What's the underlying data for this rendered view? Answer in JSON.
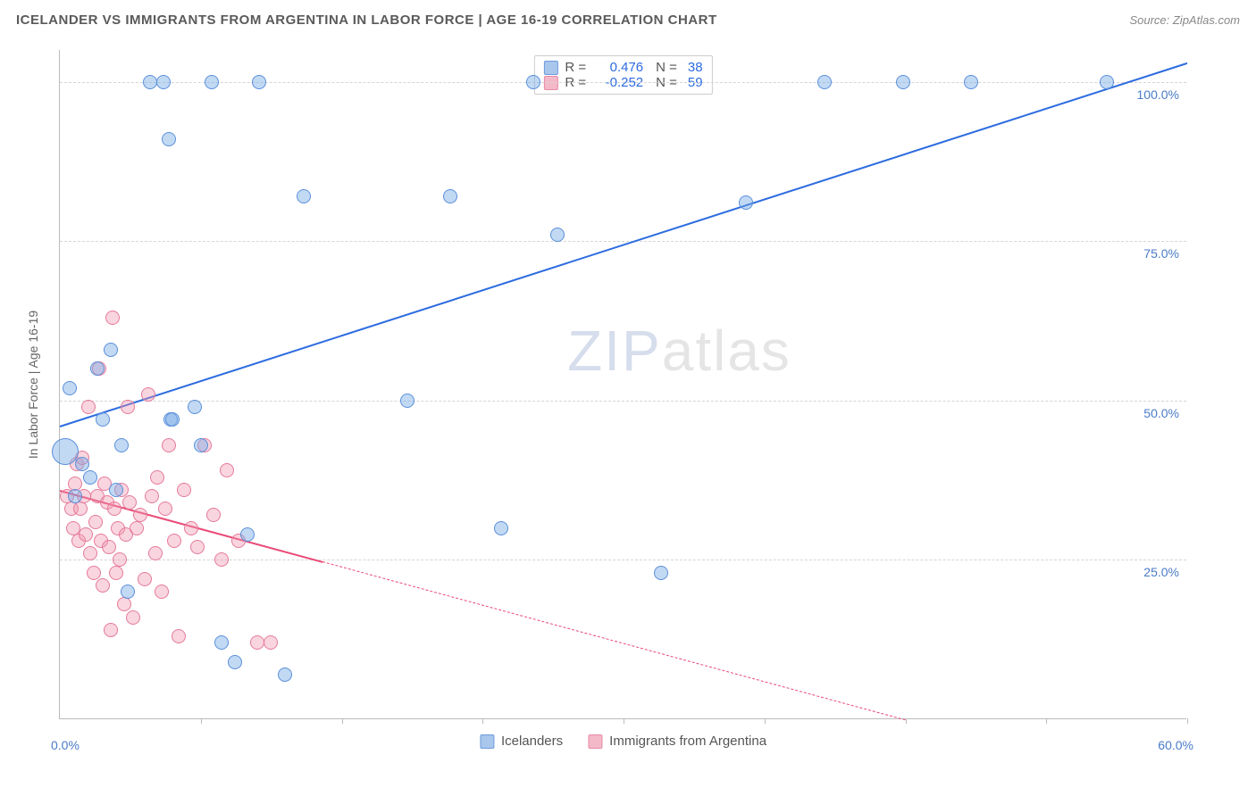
{
  "header": {
    "title": "ICELANDER VS IMMIGRANTS FROM ARGENTINA IN LABOR FORCE | AGE 16-19 CORRELATION CHART",
    "source": "Source: ZipAtlas.com"
  },
  "watermark": {
    "part1": "ZIP",
    "part2": "atlas"
  },
  "chart": {
    "type": "scatter",
    "background_color": "#ffffff",
    "grid_color": "#d5d5d5",
    "axis_color": "#bbbbbb",
    "xlim": [
      0,
      60
    ],
    "ylim": [
      0,
      105
    ],
    "x_start_label": "0.0%",
    "x_end_label": "60.0%",
    "x_tick_positions": [
      7.5,
      15,
      22.5,
      30,
      37.5,
      45,
      52.5,
      60
    ],
    "y_ticks": [
      25,
      50,
      75,
      100
    ],
    "y_tick_labels": [
      "25.0%",
      "50.0%",
      "75.0%",
      "100.0%"
    ],
    "yaxis_label": "In Labor Force | Age 16-19",
    "tick_label_color": "#4a7bc8",
    "point_radius": 8,
    "series": [
      {
        "key": "icelanders",
        "label": "Icelanders",
        "color_fill": "rgba(120,170,230,0.45)",
        "color_stroke": "#5a8fda",
        "swatch_fill": "#a9c6ec",
        "swatch_stroke": "#6b9bdc",
        "r_value": "0.476",
        "n_value": "38",
        "trend": {
          "x1": 0,
          "y1": 46,
          "x2": 60,
          "y2": 103,
          "color": "#2d6cdf",
          "solid_until_x": 60
        },
        "points": [
          {
            "x": 0.3,
            "y": 42,
            "r": 15
          },
          {
            "x": 0.5,
            "y": 52
          },
          {
            "x": 0.8,
            "y": 35
          },
          {
            "x": 1.2,
            "y": 40
          },
          {
            "x": 1.6,
            "y": 38
          },
          {
            "x": 2.0,
            "y": 55
          },
          {
            "x": 2.3,
            "y": 47
          },
          {
            "x": 2.7,
            "y": 58
          },
          {
            "x": 3.0,
            "y": 36
          },
          {
            "x": 3.3,
            "y": 43
          },
          {
            "x": 3.6,
            "y": 20
          },
          {
            "x": 4.8,
            "y": 100
          },
          {
            "x": 5.5,
            "y": 100
          },
          {
            "x": 5.8,
            "y": 91
          },
          {
            "x": 5.9,
            "y": 47
          },
          {
            "x": 6.0,
            "y": 47
          },
          {
            "x": 7.2,
            "y": 49
          },
          {
            "x": 7.5,
            "y": 43
          },
          {
            "x": 8.1,
            "y": 100
          },
          {
            "x": 8.6,
            "y": 12
          },
          {
            "x": 9.3,
            "y": 9
          },
          {
            "x": 10.0,
            "y": 29
          },
          {
            "x": 10.6,
            "y": 100
          },
          {
            "x": 12.0,
            "y": 7
          },
          {
            "x": 13.0,
            "y": 82
          },
          {
            "x": 18.5,
            "y": 50
          },
          {
            "x": 20.8,
            "y": 82
          },
          {
            "x": 23.5,
            "y": 30
          },
          {
            "x": 25.2,
            "y": 100
          },
          {
            "x": 26.5,
            "y": 76
          },
          {
            "x": 32.0,
            "y": 23
          },
          {
            "x": 36.5,
            "y": 81
          },
          {
            "x": 40.7,
            "y": 100
          },
          {
            "x": 44.9,
            "y": 100
          },
          {
            "x": 48.5,
            "y": 100
          },
          {
            "x": 55.7,
            "y": 100
          }
        ]
      },
      {
        "key": "argentina",
        "label": "Immigrants from Argentina",
        "color_fill": "rgba(240,150,175,0.40)",
        "color_stroke": "#e57a9a",
        "swatch_fill": "#f4b9c9",
        "swatch_stroke": "#e88aa6",
        "r_value": "-0.252",
        "n_value": "59",
        "trend": {
          "x1": 0,
          "y1": 36,
          "x2": 45,
          "y2": 0,
          "color": "#e94b77",
          "solid_until_x": 14
        },
        "points": [
          {
            "x": 0.4,
            "y": 35
          },
          {
            "x": 0.6,
            "y": 33
          },
          {
            "x": 0.7,
            "y": 30
          },
          {
            "x": 0.8,
            "y": 37
          },
          {
            "x": 0.9,
            "y": 40
          },
          {
            "x": 1.0,
            "y": 28
          },
          {
            "x": 1.1,
            "y": 33
          },
          {
            "x": 1.2,
            "y": 41
          },
          {
            "x": 1.3,
            "y": 35
          },
          {
            "x": 1.4,
            "y": 29
          },
          {
            "x": 1.5,
            "y": 49
          },
          {
            "x": 1.6,
            "y": 26
          },
          {
            "x": 1.8,
            "y": 23
          },
          {
            "x": 1.9,
            "y": 31
          },
          {
            "x": 2.0,
            "y": 35
          },
          {
            "x": 2.1,
            "y": 55
          },
          {
            "x": 2.2,
            "y": 28
          },
          {
            "x": 2.3,
            "y": 21
          },
          {
            "x": 2.4,
            "y": 37
          },
          {
            "x": 2.5,
            "y": 34
          },
          {
            "x": 2.6,
            "y": 27
          },
          {
            "x": 2.7,
            "y": 14
          },
          {
            "x": 2.8,
            "y": 63
          },
          {
            "x": 2.9,
            "y": 33
          },
          {
            "x": 3.0,
            "y": 23
          },
          {
            "x": 3.1,
            "y": 30
          },
          {
            "x": 3.2,
            "y": 25
          },
          {
            "x": 3.3,
            "y": 36
          },
          {
            "x": 3.4,
            "y": 18
          },
          {
            "x": 3.5,
            "y": 29
          },
          {
            "x": 3.6,
            "y": 49
          },
          {
            "x": 3.7,
            "y": 34
          },
          {
            "x": 3.9,
            "y": 16
          },
          {
            "x": 4.1,
            "y": 30
          },
          {
            "x": 4.3,
            "y": 32
          },
          {
            "x": 4.5,
            "y": 22
          },
          {
            "x": 4.7,
            "y": 51
          },
          {
            "x": 4.9,
            "y": 35
          },
          {
            "x": 5.1,
            "y": 26
          },
          {
            "x": 5.2,
            "y": 38
          },
          {
            "x": 5.4,
            "y": 20
          },
          {
            "x": 5.6,
            "y": 33
          },
          {
            "x": 5.8,
            "y": 43
          },
          {
            "x": 6.1,
            "y": 28
          },
          {
            "x": 6.3,
            "y": 13
          },
          {
            "x": 6.6,
            "y": 36
          },
          {
            "x": 7.0,
            "y": 30
          },
          {
            "x": 7.3,
            "y": 27
          },
          {
            "x": 7.7,
            "y": 43
          },
          {
            "x": 8.2,
            "y": 32
          },
          {
            "x": 8.6,
            "y": 25
          },
          {
            "x": 8.9,
            "y": 39
          },
          {
            "x": 9.5,
            "y": 28
          },
          {
            "x": 10.5,
            "y": 12
          },
          {
            "x": 11.2,
            "y": 12
          }
        ]
      }
    ],
    "legend_bottom": [
      {
        "series": "icelanders"
      },
      {
        "series": "argentina"
      }
    ]
  }
}
